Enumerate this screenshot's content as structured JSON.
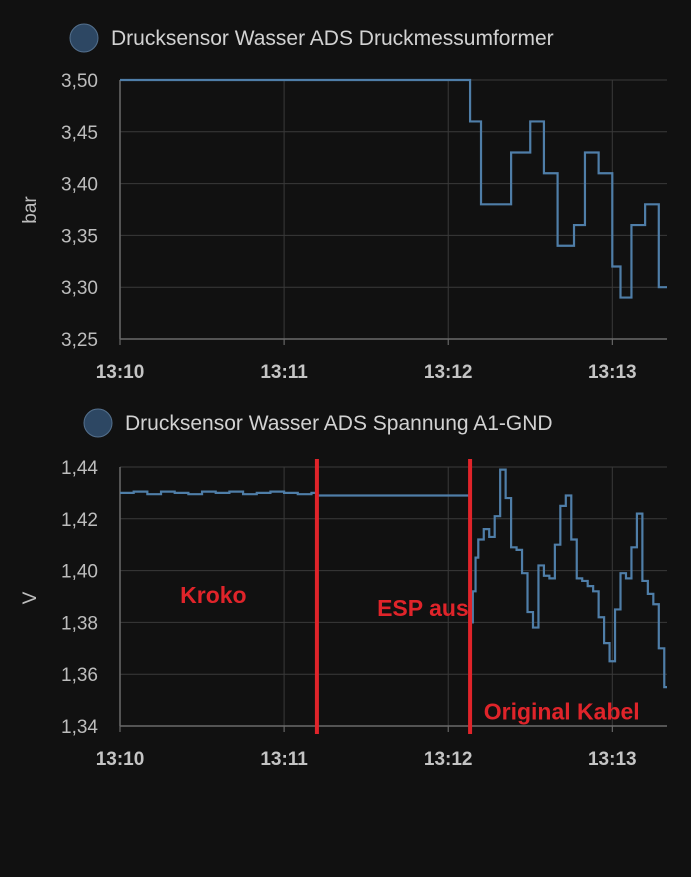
{
  "chart_data": [
    {
      "type": "line",
      "step": true,
      "legend": "Drucksensor Wasser ADS Druckmessumformer",
      "ylabel": "bar",
      "ylim": [
        3.25,
        3.5
      ],
      "yticks": [
        "3,25",
        "3,30",
        "3,35",
        "3,40",
        "3,45",
        "3,50"
      ],
      "xticks": [
        "13:10",
        "13:11",
        "13:12",
        "13:13"
      ],
      "grid": true,
      "colors": {
        "line": "#4f7ea8",
        "legend_dot": "#2d4763",
        "grid": "#3a3a3a"
      },
      "series": [
        {
          "x": [
            "13:10:00",
            "13:12:08",
            "13:12:12",
            "13:12:23",
            "13:12:30",
            "13:12:35",
            "13:12:40",
            "13:12:46",
            "13:12:50",
            "13:12:55",
            "13:13:00",
            "13:13:03",
            "13:13:07",
            "13:13:12",
            "13:13:17",
            "13:13:19"
          ],
          "values": [
            3.5,
            3.46,
            3.38,
            3.43,
            3.46,
            3.41,
            3.34,
            3.36,
            3.43,
            3.41,
            3.32,
            3.29,
            3.36,
            3.38,
            3.3,
            3.3
          ]
        }
      ]
    },
    {
      "type": "line",
      "step": true,
      "legend": "Drucksensor Wasser ADS Spannung A1-GND",
      "ylabel": "V",
      "ylim": [
        1.34,
        1.44
      ],
      "yticks": [
        "1,34",
        "1,36",
        "1,38",
        "1,40",
        "1,42",
        "1,44"
      ],
      "xticks": [
        "13:10",
        "13:11",
        "13:12",
        "13:13"
      ],
      "grid": true,
      "colors": {
        "line": "#4f7ea8",
        "legend_dot": "#2d4763",
        "grid": "#3a3a3a",
        "annotation": "#e0242a"
      },
      "annotations": [
        {
          "text": "Kroko",
          "x": "13:10:22",
          "y": 1.3875
        },
        {
          "text": "ESP aus",
          "x": "13:11:34",
          "y": 1.3825
        },
        {
          "text": "Original Kabel",
          "x": "13:12:13",
          "y": 1.3425
        }
      ],
      "vlines": [
        "13:11:12",
        "13:12:08"
      ],
      "series": [
        {
          "x": [
            "13:10:00",
            "13:10:05",
            "13:10:10",
            "13:10:15",
            "13:10:20",
            "13:10:25",
            "13:10:30",
            "13:10:35",
            "13:10:40",
            "13:10:45",
            "13:10:50",
            "13:10:55",
            "13:11:00",
            "13:11:05",
            "13:11:10",
            "13:11:12",
            "13:12:08",
            "13:12:09",
            "13:12:10",
            "13:12:11",
            "13:12:13",
            "13:12:15",
            "13:12:17",
            "13:12:19",
            "13:12:21",
            "13:12:23",
            "13:12:25",
            "13:12:27",
            "13:12:29",
            "13:12:31",
            "13:12:33",
            "13:12:35",
            "13:12:37",
            "13:12:39",
            "13:12:41",
            "13:12:43",
            "13:12:45",
            "13:12:47",
            "13:12:49",
            "13:12:51",
            "13:12:53",
            "13:12:55",
            "13:12:57",
            "13:12:59",
            "13:13:01",
            "13:13:03",
            "13:13:05",
            "13:13:07",
            "13:13:09",
            "13:13:11",
            "13:13:13",
            "13:13:15",
            "13:13:17",
            "13:13:19"
          ],
          "values": [
            1.43,
            1.4305,
            1.4295,
            1.4305,
            1.43,
            1.4295,
            1.4305,
            1.43,
            1.4305,
            1.4295,
            1.43,
            1.4305,
            1.43,
            1.4295,
            1.43,
            1.429,
            1.38,
            1.392,
            1.405,
            1.412,
            1.416,
            1.413,
            1.421,
            1.439,
            1.428,
            1.409,
            1.408,
            1.399,
            1.384,
            1.378,
            1.402,
            1.398,
            1.397,
            1.41,
            1.425,
            1.429,
            1.412,
            1.397,
            1.396,
            1.394,
            1.392,
            1.382,
            1.372,
            1.365,
            1.385,
            1.399,
            1.397,
            1.409,
            1.422,
            1.396,
            1.391,
            1.387,
            1.37,
            1.355
          ]
        }
      ]
    }
  ]
}
